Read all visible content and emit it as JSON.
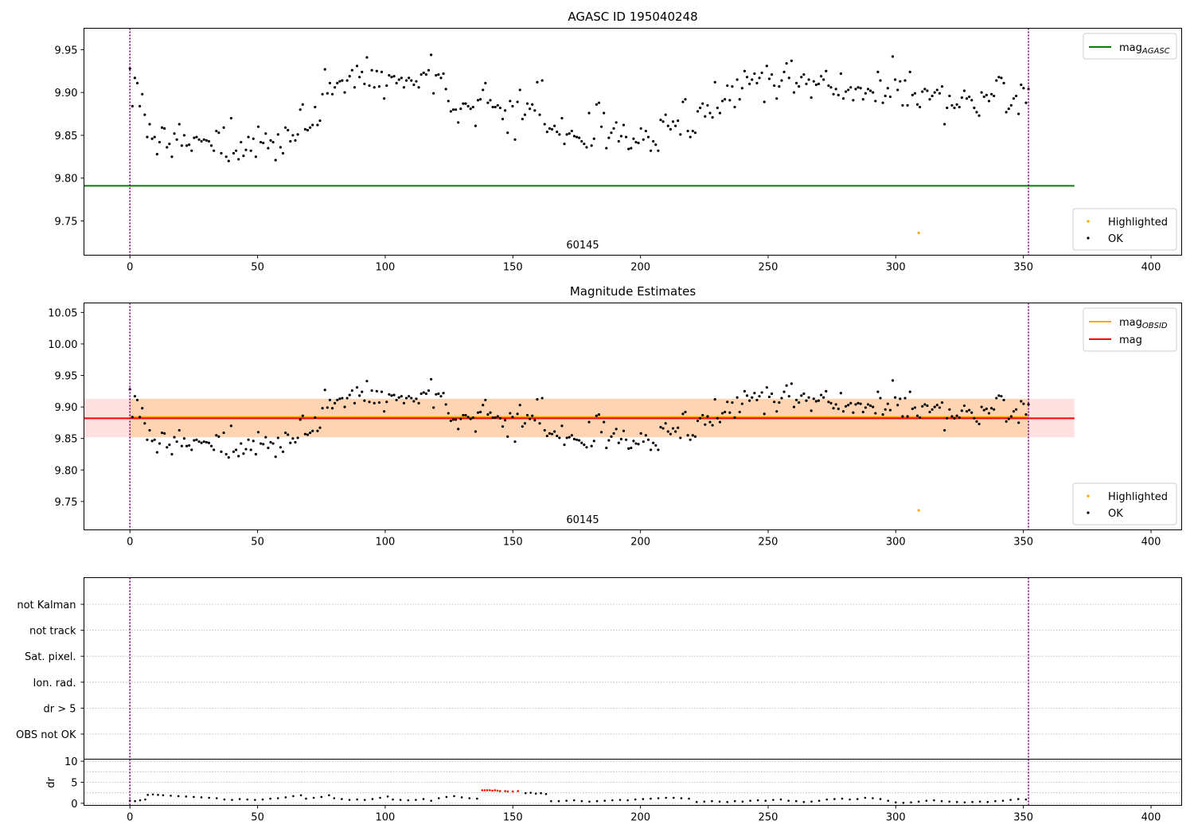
{
  "chart_data": [
    {
      "type": "scatter",
      "title": "AGASC ID 195040248",
      "xlim": [
        -18,
        412
      ],
      "ylim": [
        9.71,
        9.975
      ],
      "xticks": [
        0,
        50,
        100,
        150,
        200,
        250,
        300,
        350,
        400
      ],
      "yticks": [
        9.75,
        9.8,
        9.85,
        9.9,
        9.95
      ],
      "ytick_labels": [
        "9.75",
        "9.80",
        "9.85",
        "9.90",
        "9.95"
      ],
      "annotation": "60145",
      "vlines": [
        0,
        352
      ],
      "hlines": [
        {
          "name": "mag_AGASC",
          "y": 9.791,
          "x0": -18,
          "x1": 370,
          "color": "#008000"
        }
      ],
      "legend_top": {
        "placement": "top-right",
        "entries": [
          {
            "name": "mag",
            "sub": "AGASC",
            "color": "#008000"
          }
        ]
      },
      "legend_bottom": {
        "placement": "bottom-right",
        "entries": [
          {
            "name": "Highlighted",
            "color": "#ffa500"
          },
          {
            "name": "OK",
            "color": "#000000"
          }
        ]
      },
      "highlighted_points": [
        {
          "x": 309,
          "y": 9.736
        }
      ],
      "ok_points": {
        "x_start": 0,
        "x_end": 352,
        "y": [
          9.928,
          9.884,
          9.917,
          9.911,
          9.884,
          9.898,
          9.874,
          9.848,
          9.863,
          9.846,
          9.848,
          9.828,
          9.842,
          9.859,
          9.858,
          9.836,
          9.84,
          9.825,
          9.852,
          9.845,
          9.863,
          9.838,
          9.85,
          9.838,
          9.839,
          9.832,
          9.847,
          9.848,
          9.845,
          9.843,
          9.845,
          9.844,
          9.843,
          9.838,
          9.832,
          9.855,
          9.853,
          9.829,
          9.859,
          9.825,
          9.82,
          9.87,
          9.829,
          9.832,
          9.822,
          9.842,
          9.826,
          9.833,
          9.848,
          9.832,
          9.846,
          9.825,
          9.86,
          9.842,
          9.841,
          9.852,
          9.835,
          9.844,
          9.842,
          9.821,
          9.851,
          9.836,
          9.829,
          9.859,
          9.856,
          9.843,
          9.85,
          9.844,
          9.851,
          9.88,
          9.886,
          9.857,
          9.856,
          9.859,
          9.862,
          9.883,
          9.862,
          9.867,
          9.898,
          9.927,
          9.899,
          9.911,
          9.898,
          9.906,
          9.911,
          9.913,
          9.914,
          9.9,
          9.914,
          9.919,
          9.926,
          9.906,
          9.931,
          9.918,
          9.924,
          9.91,
          9.941,
          9.908,
          9.926,
          9.906,
          9.925,
          9.907,
          9.924,
          9.893,
          9.908,
          9.92,
          9.918,
          9.919,
          9.911,
          9.915,
          9.917,
          9.906,
          9.914,
          9.917,
          9.914,
          9.909,
          9.913,
          9.906,
          9.921,
          9.923,
          9.921,
          9.926,
          9.944,
          9.899,
          9.92,
          9.921,
          9.917,
          9.922,
          9.904,
          9.89,
          9.878,
          9.88,
          9.88,
          9.865,
          9.881,
          9.887,
          9.887,
          9.884,
          9.881,
          9.883,
          9.861,
          9.891,
          9.892,
          9.903,
          9.911,
          9.888,
          9.891,
          9.883,
          9.883,
          9.885,
          9.882,
          9.869,
          9.879,
          9.853,
          9.89,
          9.884,
          9.845,
          9.889,
          9.903,
          9.869,
          9.874,
          9.887,
          9.881,
          9.886,
          9.879,
          9.912,
          9.874,
          9.914,
          9.863,
          9.854,
          9.858,
          9.857,
          9.861,
          9.854,
          9.851,
          9.87,
          9.84,
          9.851,
          9.852,
          9.855,
          9.849,
          9.848,
          9.847,
          9.843,
          9.84,
          9.836,
          9.876,
          9.838,
          9.846,
          9.886,
          9.888,
          9.86,
          9.876,
          9.835,
          9.847,
          9.853,
          9.858,
          9.865,
          9.843,
          9.849,
          9.862,
          9.848,
          9.834,
          9.835,
          9.846,
          9.842,
          9.841,
          9.858,
          9.845,
          9.855,
          9.848,
          9.832,
          9.843,
          9.839,
          9.832,
          9.868,
          9.866,
          9.874,
          9.861,
          9.857,
          9.866,
          9.861,
          9.867,
          9.851,
          9.889,
          9.892,
          9.855,
          9.848,
          9.855,
          9.853,
          9.878,
          9.882,
          9.887,
          9.872,
          9.885,
          9.876,
          9.871,
          9.912,
          9.882,
          9.876,
          9.89,
          9.892,
          9.908,
          9.891,
          9.907,
          9.883,
          9.915,
          9.892,
          9.905,
          9.925,
          9.918,
          9.91,
          9.915,
          9.922,
          9.911,
          9.917,
          9.923,
          9.889,
          9.931,
          9.916,
          9.921,
          9.908,
          9.893,
          9.907,
          9.914,
          9.924,
          9.934,
          9.917,
          9.937,
          9.9,
          9.911,
          9.907,
          9.918,
          9.921,
          9.91,
          9.915,
          9.894,
          9.913,
          9.909,
          9.91,
          9.919,
          9.915,
          9.925,
          9.908,
          9.906,
          9.898,
          9.904,
          9.897,
          9.922,
          9.893,
          9.901,
          9.903,
          9.906,
          9.891,
          9.904,
          9.906,
          9.905,
          9.892,
          9.899,
          9.904,
          9.902,
          9.9,
          9.89,
          9.924,
          9.914,
          9.888,
          9.896,
          9.905,
          9.895,
          9.942,
          9.915,
          9.903,
          9.913,
          9.885,
          9.914,
          9.885,
          9.924,
          9.897,
          9.899,
          9.886,
          9.883,
          9.901,
          9.904,
          9.902,
          9.892,
          9.896,
          9.9,
          9.903,
          9.899,
          9.907,
          9.863,
          9.882,
          9.896,
          9.885,
          9.882,
          9.886,
          9.883,
          9.894,
          9.902,
          9.893,
          9.895,
          9.891,
          9.882,
          9.877,
          9.873,
          9.9,
          9.895,
          9.897,
          9.89,
          9.898,
          9.896,
          9.914,
          9.918,
          9.917,
          9.911,
          9.877,
          9.881,
          9.885,
          9.893,
          9.896,
          9.875,
          9.909,
          9.905,
          9.888,
          9.904
        ]
      }
    },
    {
      "type": "scatter",
      "title": "Magnitude Estimates",
      "xlim": [
        -18,
        412
      ],
      "ylim": [
        9.705,
        10.065
      ],
      "xticks": [
        0,
        50,
        100,
        150,
        200,
        250,
        300,
        350,
        400
      ],
      "yticks": [
        9.75,
        9.8,
        9.85,
        9.9,
        9.95,
        10.0,
        10.05
      ],
      "ytick_labels": [
        "9.75",
        "9.80",
        "9.85",
        "9.90",
        "9.95",
        "10.00",
        "10.05"
      ],
      "annotation": "60145",
      "vlines": [
        0,
        352
      ],
      "bands": [
        {
          "name": "mag band",
          "y0": 9.852,
          "y1": 9.913,
          "x0": -18,
          "x1": 370,
          "color": "#ff9999",
          "opacity": 0.3
        },
        {
          "name": "mag_OBSID band",
          "y0": 9.852,
          "y1": 9.913,
          "x0": 0,
          "x1": 352,
          "color": "#ffa500",
          "opacity": 0.2
        }
      ],
      "hlines": [
        {
          "name": "mag_OBSID",
          "y": 9.884,
          "x0": 0,
          "x1": 352,
          "color": "#ffa500"
        },
        {
          "name": "mag",
          "y": 9.882,
          "x0": -18,
          "x1": 370,
          "color": "#ff0000"
        }
      ],
      "legend_top": {
        "placement": "top-right",
        "entries": [
          {
            "name": "mag",
            "sub": "OBSID",
            "color": "#ffa500"
          },
          {
            "name": "mag",
            "color": "#ff0000"
          }
        ]
      },
      "legend_bottom": {
        "placement": "bottom-right",
        "entries": [
          {
            "name": "Highlighted",
            "color": "#ffa500"
          },
          {
            "name": "OK",
            "color": "#000000"
          }
        ]
      },
      "highlighted_points": [
        {
          "x": 309,
          "y": 9.736
        }
      ],
      "ok_points_same_as_panel": 0
    },
    {
      "type": "scatter",
      "xlim": [
        -18,
        412
      ],
      "category_labels": [
        "not Kalman",
        "not track",
        "Sat. pixel.",
        "Ion. rad.",
        "dr > 5",
        "OBS not OK"
      ],
      "vlines": [
        0,
        352
      ]
    },
    {
      "type": "scatter",
      "ylabel": "dr",
      "xlim": [
        -18,
        412
      ],
      "ylim": [
        -0.5,
        10.5
      ],
      "xticks": [
        0,
        50,
        100,
        150,
        200,
        250,
        300,
        350,
        400
      ],
      "yticks": [
        0,
        5,
        10
      ],
      "ytick_labels": [
        "0",
        "5",
        "10"
      ],
      "vlines": [
        0,
        352
      ],
      "series": [
        {
          "name": "black",
          "color": "#000000",
          "points": [
            [
              0,
              0.6
            ],
            [
              2,
              0.5
            ],
            [
              4,
              0.7
            ],
            [
              6,
              0.9
            ],
            [
              7,
              2.0
            ],
            [
              9,
              2.1
            ],
            [
              11,
              2.0
            ],
            [
              13,
              1.9
            ],
            [
              16,
              1.8
            ],
            [
              19,
              1.7
            ],
            [
              22,
              1.6
            ],
            [
              25,
              1.5
            ],
            [
              28,
              1.4
            ],
            [
              31,
              1.3
            ],
            [
              34,
              1.2
            ],
            [
              37,
              0.9
            ],
            [
              40,
              0.8
            ],
            [
              43,
              1.0
            ],
            [
              46,
              0.9
            ],
            [
              49,
              0.8
            ],
            [
              52,
              0.9
            ],
            [
              55,
              1.1
            ],
            [
              58,
              1.2
            ],
            [
              61,
              1.4
            ],
            [
              64,
              1.7
            ],
            [
              67,
              1.9
            ],
            [
              69,
              1.1
            ],
            [
              72,
              1.3
            ],
            [
              75,
              1.5
            ],
            [
              78,
              1.9
            ],
            [
              80,
              1.2
            ],
            [
              83,
              1.0
            ],
            [
              86,
              0.8
            ],
            [
              89,
              0.9
            ],
            [
              92,
              0.8
            ],
            [
              95,
              1.0
            ],
            [
              98,
              1.3
            ],
            [
              101,
              1.6
            ],
            [
              103,
              0.9
            ],
            [
              106,
              0.8
            ],
            [
              109,
              0.7
            ],
            [
              112,
              0.8
            ],
            [
              115,
              1.0
            ],
            [
              118,
              0.6
            ],
            [
              121,
              1.2
            ],
            [
              124,
              1.5
            ],
            [
              127,
              1.7
            ],
            [
              130,
              1.4
            ],
            [
              133,
              1.2
            ],
            [
              136,
              1.1
            ],
            [
              155,
              2.4
            ],
            [
              157,
              2.5
            ],
            [
              159,
              2.3
            ],
            [
              161,
              2.4
            ],
            [
              163,
              2.2
            ],
            [
              165,
              0.5
            ],
            [
              168,
              0.5
            ],
            [
              171,
              0.6
            ],
            [
              174,
              0.7
            ],
            [
              177,
              0.5
            ],
            [
              180,
              0.4
            ],
            [
              183,
              0.5
            ],
            [
              186,
              0.6
            ],
            [
              189,
              0.7
            ],
            [
              192,
              0.8
            ],
            [
              195,
              0.7
            ],
            [
              198,
              0.9
            ],
            [
              201,
              1.0
            ],
            [
              204,
              1.1
            ],
            [
              207,
              1.2
            ],
            [
              210,
              1.3
            ],
            [
              213,
              1.3
            ],
            [
              216,
              1.2
            ],
            [
              219,
              1.1
            ],
            [
              222,
              0.3
            ],
            [
              225,
              0.4
            ],
            [
              228,
              0.5
            ],
            [
              231,
              0.4
            ],
            [
              234,
              0.3
            ],
            [
              237,
              0.5
            ],
            [
              240,
              0.4
            ],
            [
              243,
              0.6
            ],
            [
              246,
              0.7
            ],
            [
              249,
              0.6
            ],
            [
              252,
              0.8
            ],
            [
              255,
              0.9
            ],
            [
              258,
              0.6
            ],
            [
              261,
              0.5
            ],
            [
              264,
              0.3
            ],
            [
              267,
              0.4
            ],
            [
              270,
              0.6
            ],
            [
              273,
              0.9
            ],
            [
              276,
              1.0
            ],
            [
              279,
              1.1
            ],
            [
              282,
              0.9
            ],
            [
              285,
              1.0
            ],
            [
              288,
              1.3
            ],
            [
              291,
              1.2
            ],
            [
              294,
              1.0
            ],
            [
              297,
              0.6
            ],
            [
              300,
              0.2
            ],
            [
              303,
              0.1
            ],
            [
              306,
              0.2
            ],
            [
              309,
              0.4
            ],
            [
              312,
              0.6
            ],
            [
              315,
              0.7
            ],
            [
              318,
              0.5
            ],
            [
              321,
              0.4
            ],
            [
              324,
              0.3
            ],
            [
              327,
              0.2
            ],
            [
              330,
              0.3
            ],
            [
              333,
              0.4
            ],
            [
              336,
              0.3
            ],
            [
              339,
              0.5
            ],
            [
              342,
              0.6
            ],
            [
              345,
              0.8
            ],
            [
              348,
              1.0
            ],
            [
              351,
              0.9
            ]
          ]
        },
        {
          "name": "red",
          "color": "#ff0000",
          "points": [
            [
              138,
              3.1
            ],
            [
              139,
              3.1
            ],
            [
              140,
              3.1
            ],
            [
              141,
              3.1
            ],
            [
              142,
              3.0
            ],
            [
              143,
              3.1
            ],
            [
              144,
              3.0
            ],
            [
              145,
              2.9
            ],
            [
              147,
              2.9
            ],
            [
              148,
              2.8
            ],
            [
              150,
              2.8
            ],
            [
              152,
              2.9
            ]
          ]
        }
      ]
    }
  ]
}
